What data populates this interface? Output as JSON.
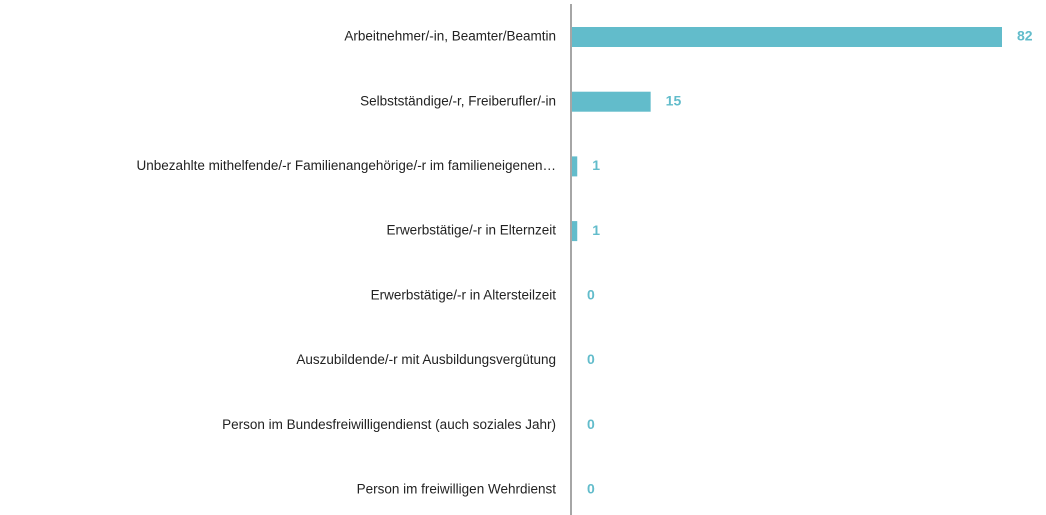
{
  "chart_data": {
    "type": "hbar",
    "categories": [
      "Arbeitnehmer/-in, Beamter/Beamtin",
      "Selbstständige/-r, Freiberufler/-in",
      "Unbezahlte mithelfende/-r Familienangehörige/-r im familieneigenen…",
      "Erwerbstätige/-r in Elternzeit",
      "Erwerbstätige/-r in Altersteilzeit",
      "Auszubildende/-r mit Ausbildungsvergütung",
      "Person im Bundesfreiwilligendienst (auch soziales Jahr)",
      "Person im freiwilligen Wehrdienst"
    ],
    "values": [
      82,
      15,
      1,
      1,
      0,
      0,
      0,
      0
    ],
    "color": "#62bccb"
  }
}
